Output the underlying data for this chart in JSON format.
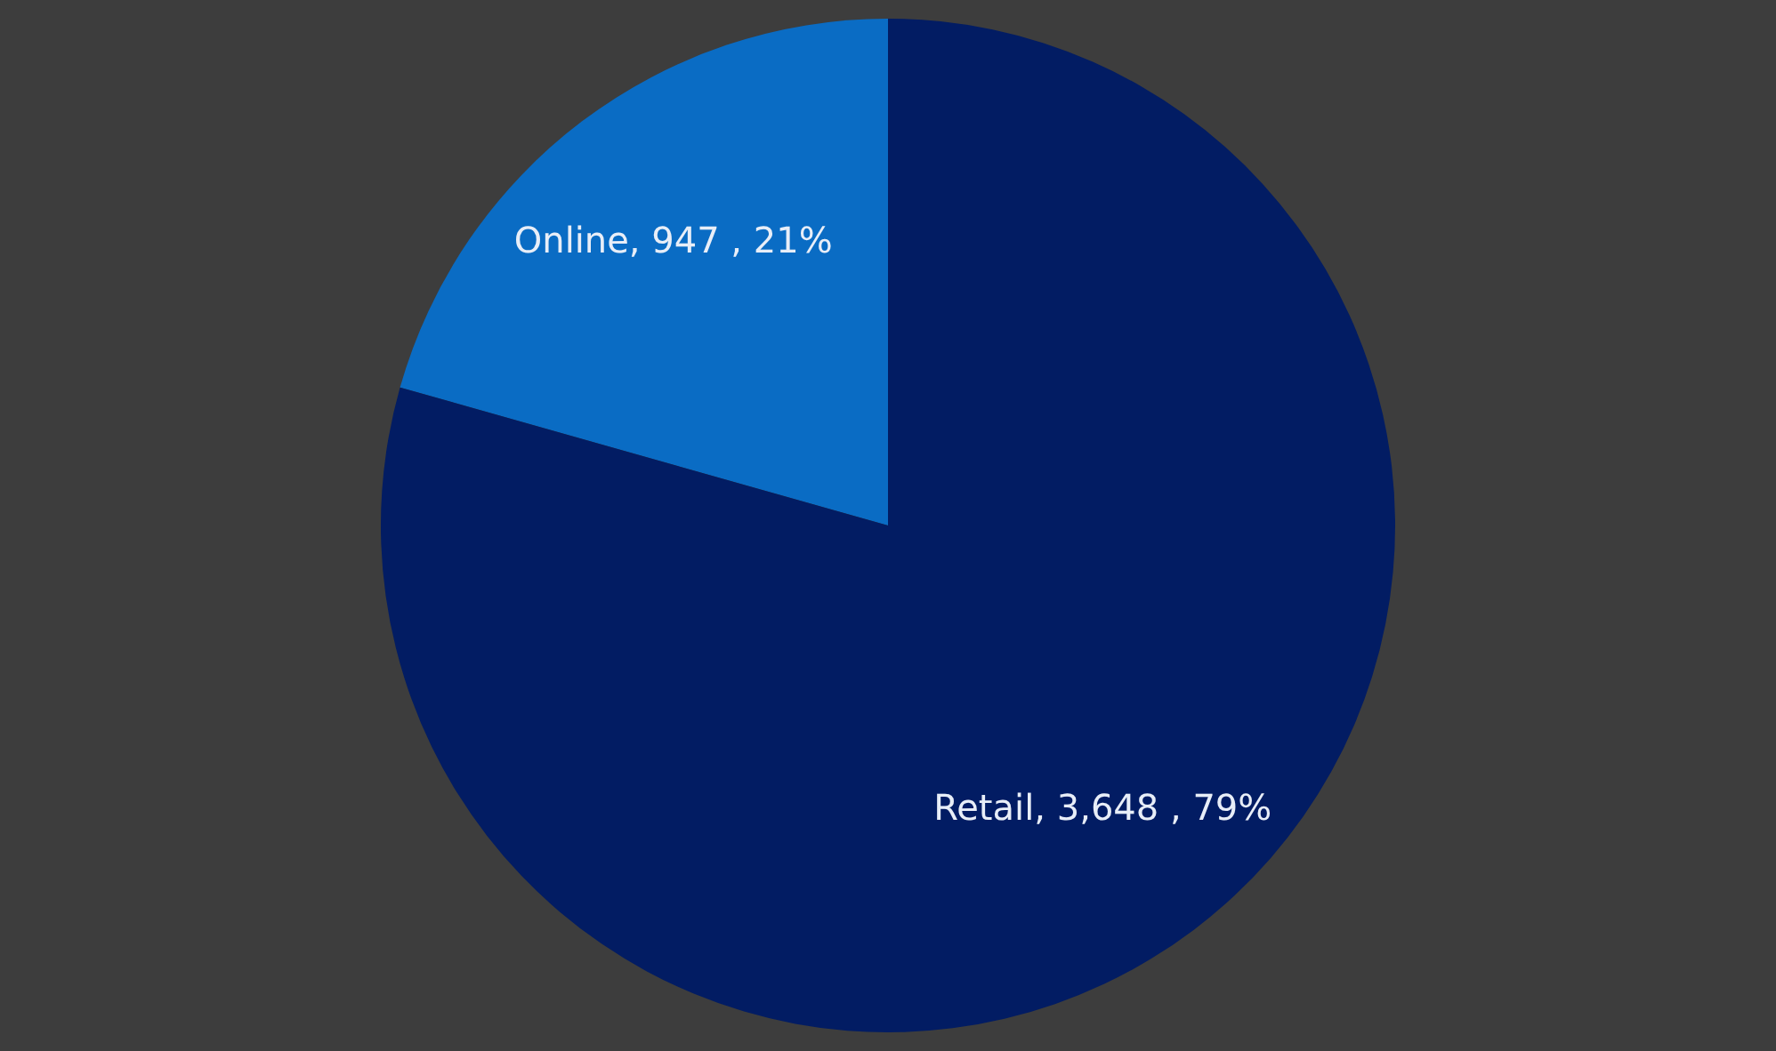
{
  "chart_data": {
    "type": "pie",
    "categories": [
      "Online",
      "Retail"
    ],
    "values": [
      947,
      3648
    ],
    "colors": [
      "#0a6cc4",
      "#021c63"
    ],
    "value_labels": [
      "947 , 21%",
      "3,648 , 79%"
    ]
  }
}
